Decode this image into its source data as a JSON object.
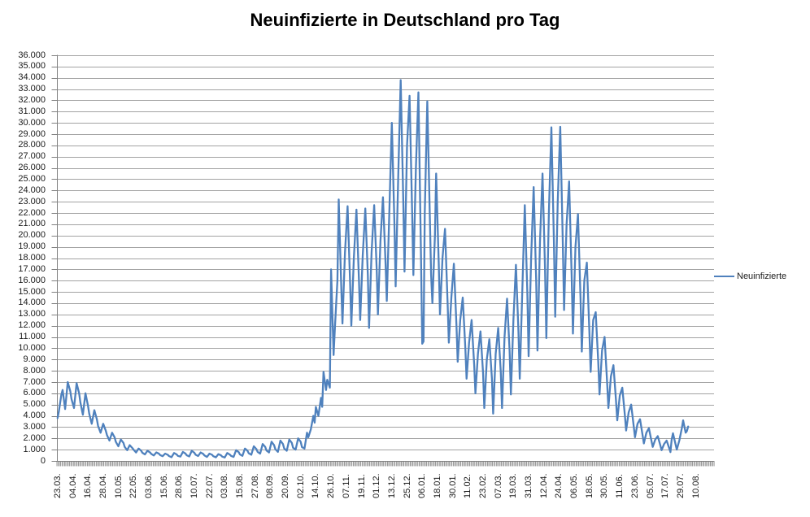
{
  "title": "Neuinfizierte in Deutschland pro Tag",
  "legend": {
    "label": "Neuinfizierte"
  },
  "colors": {
    "series_line": "#4F81BD",
    "gridline": "#A3A3A3",
    "axis": "#808080",
    "text": "#1a1a1a",
    "background": "#FFFFFF"
  },
  "chart_data": {
    "type": "line",
    "title": "Neuinfizierte in Deutschland pro Tag",
    "xlabel": "",
    "ylabel": "",
    "ylim": [
      0,
      36000
    ],
    "y_tick_step": 1000,
    "grid": "horizontal",
    "legend_position": "right",
    "y_tick_labels": [
      "0",
      "1.000",
      "2.000",
      "3.000",
      "4.000",
      "5.000",
      "6.000",
      "7.000",
      "8.000",
      "9.000",
      "10.000",
      "11.000",
      "12.000",
      "13.000",
      "14.000",
      "15.000",
      "16.000",
      "17.000",
      "18.000",
      "19.000",
      "20.000",
      "21.000",
      "22.000",
      "23.000",
      "24.000",
      "25.000",
      "26.000",
      "27.000",
      "28.000",
      "29.000",
      "30.000",
      "31.000",
      "32.000",
      "33.000",
      "34.000",
      "35.000",
      "36.000"
    ],
    "x_tick_labels": [
      "23.03.",
      "04.04.",
      "16.04.",
      "28.04.",
      "10.05.",
      "22.05.",
      "03.06.",
      "15.06.",
      "28.06.",
      "10.07.",
      "22.07.",
      "03.08.",
      "15.08.",
      "27.08.",
      "08.09.",
      "20.09.",
      "02.10.",
      "14.10.",
      "26.10.",
      "07.11.",
      "19.11.",
      "01.12.",
      "13.12.",
      "25.12.",
      "06.01.",
      "18.01.",
      "30.01.",
      "11.02.",
      "23.02.",
      "07.03.",
      "19.03.",
      "31.03.",
      "12.04.",
      "24.04.",
      "06.05.",
      "18.05.",
      "30.05.",
      "11.06.",
      "23.06.",
      "05.07.",
      "17.07.",
      "29.07.",
      "10.08."
    ],
    "x_tick_interval_days": 12,
    "x_total_days": 519,
    "series": [
      {
        "name": "Neuinfizierte",
        "color": "#4F81BD",
        "points": [
          [
            0,
            3800
          ],
          [
            1,
            4400
          ],
          [
            3,
            5900
          ],
          [
            4,
            6300
          ],
          [
            6,
            4600
          ],
          [
            8,
            7000
          ],
          [
            10,
            6200
          ],
          [
            11,
            5500
          ],
          [
            13,
            4700
          ],
          [
            15,
            6900
          ],
          [
            17,
            6000
          ],
          [
            18,
            5200
          ],
          [
            20,
            4100
          ],
          [
            22,
            6000
          ],
          [
            24,
            4900
          ],
          [
            25,
            4200
          ],
          [
            27,
            3300
          ],
          [
            29,
            4500
          ],
          [
            31,
            3700
          ],
          [
            32,
            3100
          ],
          [
            34,
            2500
          ],
          [
            36,
            3300
          ],
          [
            38,
            2700
          ],
          [
            39,
            2300
          ],
          [
            41,
            1800
          ],
          [
            43,
            2500
          ],
          [
            45,
            2100
          ],
          [
            46,
            1700
          ],
          [
            48,
            1300
          ],
          [
            50,
            1900
          ],
          [
            52,
            1600
          ],
          [
            53,
            1250
          ],
          [
            55,
            950
          ],
          [
            57,
            1400
          ],
          [
            59,
            1150
          ],
          [
            60,
            1000
          ],
          [
            62,
            750
          ],
          [
            64,
            1100
          ],
          [
            66,
            900
          ],
          [
            67,
            720
          ],
          [
            69,
            580
          ],
          [
            71,
            900
          ],
          [
            73,
            750
          ],
          [
            74,
            620
          ],
          [
            76,
            480
          ],
          [
            78,
            750
          ],
          [
            80,
            640
          ],
          [
            81,
            520
          ],
          [
            83,
            420
          ],
          [
            85,
            650
          ],
          [
            87,
            540
          ],
          [
            88,
            430
          ],
          [
            90,
            330
          ],
          [
            92,
            700
          ],
          [
            94,
            580
          ],
          [
            95,
            450
          ],
          [
            97,
            380
          ],
          [
            99,
            800
          ],
          [
            101,
            650
          ],
          [
            102,
            500
          ],
          [
            104,
            400
          ],
          [
            106,
            900
          ],
          [
            108,
            720
          ],
          [
            109,
            550
          ],
          [
            111,
            430
          ],
          [
            113,
            750
          ],
          [
            115,
            620
          ],
          [
            116,
            480
          ],
          [
            118,
            350
          ],
          [
            120,
            650
          ],
          [
            122,
            540
          ],
          [
            123,
            420
          ],
          [
            125,
            320
          ],
          [
            127,
            600
          ],
          [
            129,
            500
          ],
          [
            130,
            380
          ],
          [
            132,
            300
          ],
          [
            134,
            700
          ],
          [
            136,
            560
          ],
          [
            137,
            450
          ],
          [
            139,
            350
          ],
          [
            141,
            950
          ],
          [
            143,
            780
          ],
          [
            144,
            580
          ],
          [
            146,
            450
          ],
          [
            148,
            1100
          ],
          [
            150,
            900
          ],
          [
            151,
            680
          ],
          [
            153,
            550
          ],
          [
            155,
            1300
          ],
          [
            157,
            1050
          ],
          [
            158,
            800
          ],
          [
            160,
            650
          ],
          [
            162,
            1500
          ],
          [
            164,
            1250
          ],
          [
            165,
            920
          ],
          [
            167,
            750
          ],
          [
            169,
            1700
          ],
          [
            171,
            1400
          ],
          [
            172,
            1040
          ],
          [
            174,
            800
          ],
          [
            176,
            1800
          ],
          [
            178,
            1500
          ],
          [
            179,
            1100
          ],
          [
            181,
            900
          ],
          [
            183,
            1900
          ],
          [
            185,
            1600
          ],
          [
            186,
            1170
          ],
          [
            188,
            1000
          ],
          [
            190,
            2000
          ],
          [
            192,
            1700
          ],
          [
            193,
            1230
          ],
          [
            195,
            1100
          ],
          [
            197,
            2500
          ],
          [
            198,
            2100
          ],
          [
            200,
            2800
          ],
          [
            202,
            4000
          ],
          [
            203,
            3400
          ],
          [
            204,
            4800
          ],
          [
            206,
            4000
          ],
          [
            208,
            5600
          ],
          [
            209,
            4800
          ],
          [
            210,
            7900
          ],
          [
            212,
            6300
          ],
          [
            213,
            7200
          ],
          [
            215,
            6500
          ],
          [
            216,
            17000
          ],
          [
            218,
            9400
          ],
          [
            219,
            11800
          ],
          [
            221,
            16000
          ],
          [
            222,
            23200
          ],
          [
            224,
            15500
          ],
          [
            225,
            12200
          ],
          [
            227,
            18500
          ],
          [
            229,
            22600
          ],
          [
            231,
            15800
          ],
          [
            232,
            12000
          ],
          [
            234,
            18000
          ],
          [
            236,
            22300
          ],
          [
            238,
            16000
          ],
          [
            239,
            12500
          ],
          [
            241,
            18200
          ],
          [
            243,
            22400
          ],
          [
            245,
            16500
          ],
          [
            246,
            11800
          ],
          [
            248,
            18500
          ],
          [
            250,
            22700
          ],
          [
            252,
            17000
          ],
          [
            253,
            13000
          ],
          [
            255,
            19500
          ],
          [
            257,
            23400
          ],
          [
            259,
            17500
          ],
          [
            260,
            14200
          ],
          [
            262,
            22000
          ],
          [
            264,
            30000
          ],
          [
            266,
            21000
          ],
          [
            267,
            15500
          ],
          [
            269,
            25000
          ],
          [
            271,
            33800
          ],
          [
            273,
            23000
          ],
          [
            274,
            16800
          ],
          [
            276,
            28000
          ],
          [
            278,
            32400
          ],
          [
            280,
            22000
          ],
          [
            281,
            16500
          ],
          [
            283,
            26000
          ],
          [
            285,
            32700
          ],
          [
            287,
            18000
          ],
          [
            288,
            10400
          ],
          [
            289,
            10600
          ],
          [
            290,
            22000
          ],
          [
            292,
            31900
          ],
          [
            294,
            21500
          ],
          [
            295,
            16500
          ],
          [
            296,
            14000
          ],
          [
            298,
            20000
          ],
          [
            299,
            25500
          ],
          [
            301,
            17500
          ],
          [
            302,
            13000
          ],
          [
            304,
            18000
          ],
          [
            306,
            20600
          ],
          [
            308,
            14000
          ],
          [
            309,
            10500
          ],
          [
            311,
            14500
          ],
          [
            313,
            17500
          ],
          [
            315,
            12000
          ],
          [
            316,
            8800
          ],
          [
            318,
            12500
          ],
          [
            320,
            14500
          ],
          [
            322,
            10000
          ],
          [
            323,
            7300
          ],
          [
            325,
            10500
          ],
          [
            327,
            12500
          ],
          [
            329,
            8500
          ],
          [
            330,
            6000
          ],
          [
            332,
            9500
          ],
          [
            334,
            11500
          ],
          [
            336,
            7800
          ],
          [
            337,
            4700
          ],
          [
            339,
            9000
          ],
          [
            341,
            10800
          ],
          [
            343,
            7300
          ],
          [
            344,
            4200
          ],
          [
            346,
            9500
          ],
          [
            348,
            11800
          ],
          [
            350,
            8000
          ],
          [
            351,
            4700
          ],
          [
            353,
            11000
          ],
          [
            355,
            14400
          ],
          [
            357,
            9800
          ],
          [
            358,
            5900
          ],
          [
            360,
            12500
          ],
          [
            362,
            17400
          ],
          [
            364,
            11500
          ],
          [
            365,
            7300
          ],
          [
            367,
            15000
          ],
          [
            369,
            22700
          ],
          [
            371,
            15000
          ],
          [
            372,
            9300
          ],
          [
            374,
            18000
          ],
          [
            376,
            24300
          ],
          [
            378,
            16000
          ],
          [
            379,
            9800
          ],
          [
            381,
            19500
          ],
          [
            383,
            25500
          ],
          [
            385,
            17000
          ],
          [
            386,
            10900
          ],
          [
            388,
            22000
          ],
          [
            390,
            29600
          ],
          [
            392,
            19500
          ],
          [
            393,
            12800
          ],
          [
            395,
            23000
          ],
          [
            397,
            29650
          ],
          [
            399,
            19500
          ],
          [
            400,
            13400
          ],
          [
            402,
            21000
          ],
          [
            404,
            24800
          ],
          [
            406,
            16500
          ],
          [
            407,
            11300
          ],
          [
            409,
            19000
          ],
          [
            411,
            21900
          ],
          [
            413,
            14500
          ],
          [
            414,
            9700
          ],
          [
            416,
            16000
          ],
          [
            418,
            17600
          ],
          [
            420,
            11500
          ],
          [
            421,
            7900
          ],
          [
            423,
            12500
          ],
          [
            425,
            13200
          ],
          [
            427,
            8800
          ],
          [
            428,
            5900
          ],
          [
            430,
            9800
          ],
          [
            432,
            11000
          ],
          [
            434,
            7000
          ],
          [
            435,
            4700
          ],
          [
            437,
            7500
          ],
          [
            439,
            8500
          ],
          [
            441,
            5400
          ],
          [
            442,
            3600
          ],
          [
            444,
            5800
          ],
          [
            446,
            6500
          ],
          [
            448,
            4100
          ],
          [
            449,
            2700
          ],
          [
            451,
            4300
          ],
          [
            453,
            5000
          ],
          [
            455,
            3100
          ],
          [
            456,
            2100
          ],
          [
            458,
            3300
          ],
          [
            460,
            3700
          ],
          [
            462,
            2300
          ],
          [
            463,
            1550
          ],
          [
            465,
            2500
          ],
          [
            467,
            2900
          ],
          [
            469,
            1800
          ],
          [
            470,
            1250
          ],
          [
            472,
            1900
          ],
          [
            474,
            2200
          ],
          [
            476,
            1400
          ],
          [
            477,
            950
          ],
          [
            479,
            1500
          ],
          [
            481,
            1800
          ],
          [
            483,
            1150
          ],
          [
            484,
            780
          ],
          [
            485,
            1900
          ],
          [
            486,
            2450
          ],
          [
            488,
            1500
          ],
          [
            489,
            1000
          ],
          [
            491,
            1800
          ],
          [
            493,
            2900
          ],
          [
            494,
            3600
          ],
          [
            496,
            2500
          ],
          [
            497,
            2650
          ],
          [
            498,
            3050
          ]
        ]
      }
    ]
  }
}
